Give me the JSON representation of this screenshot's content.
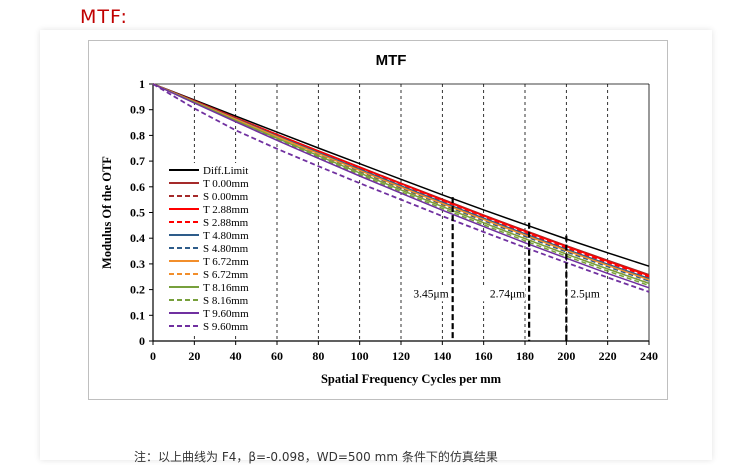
{
  "heading": "MTF:",
  "note": "注：以上曲线为 F4，β=-0.098，WD=500 mm 条件下的仿真结果",
  "chart_data": {
    "type": "line",
    "title": "MTF",
    "xlabel": "Spatial Frequency Cycles per mm",
    "ylabel": "Modulus Of the OTF",
    "xlim": [
      0,
      240
    ],
    "ylim": [
      0,
      1
    ],
    "xticks": [
      "0",
      "20",
      "40",
      "60",
      "80",
      "100",
      "120",
      "140",
      "160",
      "180",
      "200",
      "220",
      "240"
    ],
    "yticks": [
      "0",
      "0.1",
      "0.2",
      "0.3",
      "0.4",
      "0.5",
      "0.6",
      "0.7",
      "0.8",
      "0.9",
      "1"
    ],
    "grid": "vertical-dashed",
    "legend_position": "left-bottom",
    "x": [
      0,
      20,
      40,
      60,
      80,
      100,
      120,
      140,
      160,
      180,
      200,
      220,
      240
    ],
    "series": [
      {
        "name": "Diff.Limit",
        "color": "#000000",
        "dash": "solid",
        "values": [
          1,
          0.938,
          0.875,
          0.813,
          0.751,
          0.69,
          0.629,
          0.569,
          0.51,
          0.453,
          0.397,
          0.343,
          0.291
        ]
      },
      {
        "name": "T 0.00mm",
        "color": "#a52a2a",
        "dash": "solid",
        "values": [
          1,
          0.935,
          0.869,
          0.804,
          0.74,
          0.677,
          0.614,
          0.552,
          0.49,
          0.43,
          0.371,
          0.314,
          0.258
        ]
      },
      {
        "name": "S 0.00mm",
        "color": "#a52a2a",
        "dash": "dashed",
        "values": [
          1,
          0.934,
          0.868,
          0.803,
          0.739,
          0.676,
          0.613,
          0.551,
          0.489,
          0.429,
          0.37,
          0.313,
          0.257
        ]
      },
      {
        "name": "T 2.88mm",
        "color": "#ff0000",
        "dash": "solid",
        "values": [
          1,
          0.934,
          0.868,
          0.803,
          0.739,
          0.675,
          0.612,
          0.549,
          0.487,
          0.427,
          0.368,
          0.31,
          0.254
        ]
      },
      {
        "name": "S 2.88mm",
        "color": "#ff0000",
        "dash": "dashed",
        "values": [
          1,
          0.932,
          0.865,
          0.799,
          0.734,
          0.67,
          0.606,
          0.543,
          0.481,
          0.421,
          0.362,
          0.305,
          0.249
        ]
      },
      {
        "name": "T 4.80mm",
        "color": "#2e5c8a",
        "dash": "solid",
        "values": [
          1,
          0.932,
          0.865,
          0.798,
          0.733,
          0.668,
          0.604,
          0.54,
          0.478,
          0.417,
          0.357,
          0.299,
          0.243
        ]
      },
      {
        "name": "S 4.80mm",
        "color": "#2e5c8a",
        "dash": "dashed",
        "values": [
          1,
          0.93,
          0.861,
          0.793,
          0.726,
          0.66,
          0.595,
          0.531,
          0.468,
          0.407,
          0.347,
          0.289,
          0.233
        ]
      },
      {
        "name": "T 6.72mm",
        "color": "#f28e2b",
        "dash": "solid",
        "values": [
          1,
          0.931,
          0.863,
          0.795,
          0.729,
          0.664,
          0.599,
          0.535,
          0.473,
          0.412,
          0.352,
          0.294,
          0.238
        ]
      },
      {
        "name": "S 6.72mm",
        "color": "#f28e2b",
        "dash": "dashed",
        "values": [
          1,
          0.929,
          0.859,
          0.79,
          0.722,
          0.655,
          0.589,
          0.525,
          0.461,
          0.399,
          0.339,
          0.281,
          0.225
        ]
      },
      {
        "name": "T 8.16mm",
        "color": "#77a03c",
        "dash": "solid",
        "values": [
          1,
          0.929,
          0.858,
          0.789,
          0.721,
          0.654,
          0.588,
          0.523,
          0.46,
          0.398,
          0.338,
          0.28,
          0.224
        ]
      },
      {
        "name": "S 8.16mm",
        "color": "#77a03c",
        "dash": "dashed",
        "values": [
          1,
          0.927,
          0.855,
          0.785,
          0.716,
          0.648,
          0.581,
          0.516,
          0.452,
          0.39,
          0.33,
          0.272,
          0.216
        ]
      },
      {
        "name": "T 9.60mm",
        "color": "#7030a0",
        "dash": "solid",
        "values": [
          1,
          0.926,
          0.853,
          0.781,
          0.711,
          0.642,
          0.575,
          0.509,
          0.445,
          0.382,
          0.322,
          0.263,
          0.207
        ]
      },
      {
        "name": "S 9.60mm",
        "color": "#7030a0",
        "dash": "dashed",
        "values": [
          1,
          0.905,
          0.82,
          0.748,
          0.68,
          0.614,
          0.55,
          0.486,
          0.424,
          0.364,
          0.305,
          0.247,
          0.191
        ]
      }
    ],
    "annotations": [
      {
        "label": "3.45μm",
        "x": 145,
        "y_top": 0.56
      },
      {
        "label": "2.74μm",
        "x": 182,
        "y_top": 0.46
      },
      {
        "label": "2.5μm",
        "x": 200,
        "y_top": 0.41
      }
    ]
  }
}
